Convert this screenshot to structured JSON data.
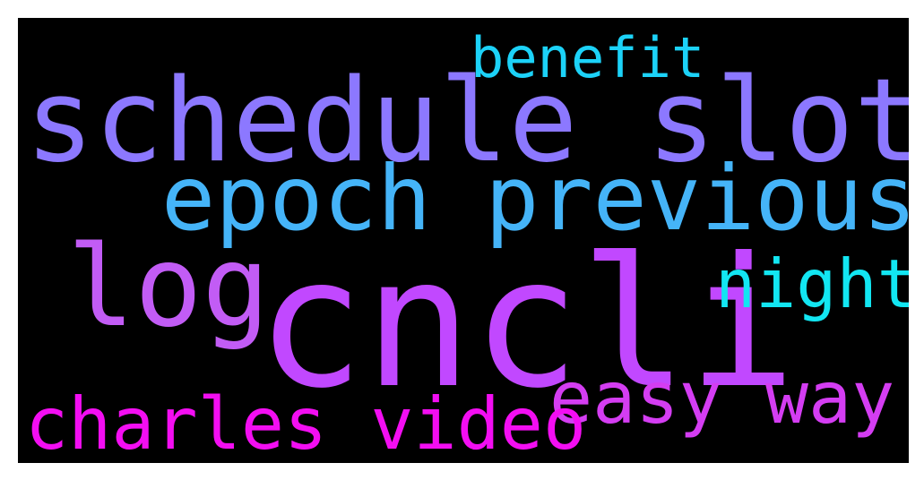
{
  "wordcloud": {
    "background": "#000000",
    "words": [
      {
        "text": "cncli",
        "color": "#c148ff"
      },
      {
        "text": "schedule slot",
        "color": "#8c78ff"
      },
      {
        "text": "epoch previous",
        "color": "#45b4f8"
      },
      {
        "text": "log",
        "color": "#c25cf5"
      },
      {
        "text": "benefit",
        "color": "#1cd2f8"
      },
      {
        "text": "night",
        "color": "#12e6f2"
      },
      {
        "text": "easy way",
        "color": "#d43df2"
      },
      {
        "text": "charles video",
        "color": "#f30ef2"
      }
    ]
  }
}
